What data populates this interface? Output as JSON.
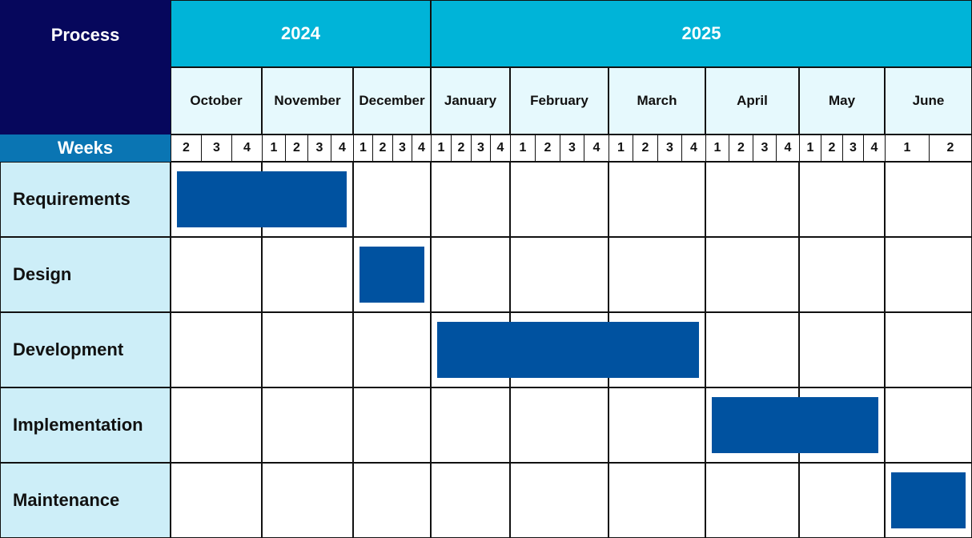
{
  "headers": {
    "process": "Process",
    "weeks": "Weeks"
  },
  "years": [
    {
      "label": "2024",
      "color": "#00b4d8"
    },
    {
      "label": "2025",
      "color": "#00b4d8"
    }
  ],
  "months": [
    {
      "label": "October",
      "year": "2024",
      "weeks": [
        "2",
        "3",
        "4"
      ]
    },
    {
      "label": "November",
      "year": "2024",
      "weeks": [
        "1",
        "2",
        "3",
        "4"
      ]
    },
    {
      "label": "December",
      "year": "2024",
      "weeks": [
        "1",
        "2",
        "3",
        "4"
      ]
    },
    {
      "label": "January",
      "year": "2025",
      "weeks": [
        "1",
        "2",
        "3",
        "4"
      ]
    },
    {
      "label": "February",
      "year": "2025",
      "weeks": [
        "1",
        "2",
        "3",
        "4"
      ]
    },
    {
      "label": "March",
      "year": "2025",
      "weeks": [
        "1",
        "2",
        "3",
        "4"
      ]
    },
    {
      "label": "April",
      "year": "2025",
      "weeks": [
        "1",
        "2",
        "3",
        "4"
      ]
    },
    {
      "label": "May",
      "year": "2025",
      "weeks": [
        "1",
        "2",
        "3",
        "4"
      ]
    },
    {
      "label": "June",
      "year": "2025",
      "weeks": [
        "1",
        "2"
      ]
    }
  ],
  "tasks": [
    {
      "name": "Requirements",
      "start": "October",
      "end": "November"
    },
    {
      "name": "Design",
      "start": "December",
      "end": "December"
    },
    {
      "name": "Development",
      "start": "January",
      "end": "March"
    },
    {
      "name": "Implementation",
      "start": "April",
      "end": "May"
    },
    {
      "name": "Maintenance",
      "start": "June",
      "end": "June"
    }
  ],
  "colors": {
    "process_header": "#06075c",
    "weeks_header": "#0a75b3",
    "month_bg": "#e6f9fd",
    "row_label_bg": "#cdeef8",
    "bar": "#0052a0"
  }
}
